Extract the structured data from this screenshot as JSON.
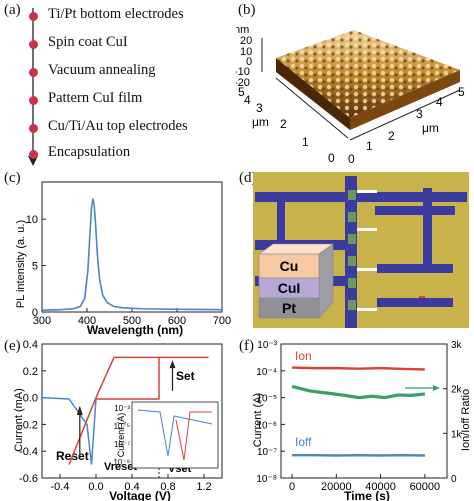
{
  "panel_a": {
    "label": "(a)",
    "steps": [
      "Ti/Pt bottom electrodes",
      "Spin coat CuI",
      "Vacuum annealing",
      "Pattern CuI film",
      "Cu/Ti/Au top electrodes",
      "Encapsulation"
    ]
  },
  "panel_b": {
    "label": "(b)",
    "z_unit": "nm",
    "z_ticks": [
      "20",
      "10",
      "0",
      "-10",
      "-20"
    ],
    "y_unit": "μm",
    "y_ticks": [
      "5",
      "4",
      "3",
      "2",
      "1",
      "0"
    ],
    "x_unit": "μm",
    "x_ticks": [
      "0",
      "1",
      "2",
      "3",
      "4",
      "5"
    ]
  },
  "panel_c": {
    "label": "(c)",
    "chart_data": {
      "type": "line",
      "xlabel": "Wavelength (nm)",
      "ylabel": "PL intensity (a. u.)",
      "xlim": [
        300,
        700
      ],
      "ylim": [
        0,
        14
      ],
      "xticks": [
        "300",
        "400",
        "500",
        "600",
        "700"
      ],
      "yticks": [
        "0",
        "5",
        "10"
      ],
      "x": [
        300,
        340,
        370,
        385,
        395,
        402,
        406,
        410,
        413,
        416,
        419,
        423,
        428,
        435,
        445,
        460,
        480,
        520,
        580,
        640,
        700
      ],
      "y": [
        0.2,
        0.25,
        0.35,
        0.6,
        1.5,
        4.5,
        8,
        11.2,
        12.2,
        11.5,
        9.5,
        6.2,
        3.5,
        1.8,
        1.0,
        0.6,
        0.45,
        0.35,
        0.3,
        0.28,
        0.25
      ],
      "color": "#4a86c8"
    }
  },
  "panel_d": {
    "label": "(d)",
    "layers": [
      "Cu",
      "CuI",
      "Pt"
    ],
    "colors": {
      "substrate": "#c9b24a",
      "electrode": "#3b3a9e",
      "pad": "#6a9a5a",
      "cu": "#f6c9a3",
      "cui": "#b7a9d6",
      "pt": "#8f9196"
    }
  },
  "panel_e": {
    "label": "(e)",
    "chart_data": {
      "type": "line",
      "xlabel": "Voltage (V)",
      "ylabel": "Current (mA)",
      "xlim": [
        -0.6,
        1.4
      ],
      "ylim": [
        -0.6,
        0.4
      ],
      "xticks": [
        "-0.4",
        "0.0",
        "0.4",
        "0.8",
        "1.2"
      ],
      "yticks": [
        "0.4",
        "0.2",
        "0.0",
        "-0.2",
        "-0.4",
        "-0.6"
      ],
      "series": [
        {
          "color": "#d9413b",
          "x": [
            0.0,
            0.7,
            0.7,
            1.25,
            1.25,
            0.2,
            0.0,
            -0.3
          ],
          "y": [
            -0.01,
            -0.01,
            0.3,
            0.3,
            0.3,
            0.3,
            0.0,
            -0.5
          ]
        },
        {
          "color": "#4a86c8",
          "x": [
            -0.6,
            -0.3,
            -0.1,
            -0.05,
            0.0
          ],
          "y": [
            0.0,
            -0.01,
            -0.2,
            -0.5,
            -0.01
          ]
        }
      ],
      "annotations": [
        "Set",
        "Reset",
        "Vreset",
        "Vset"
      ],
      "inset": {
        "ylabel": "Current (A)",
        "yticks": [
          "10⁻³",
          "10⁻⁵",
          "10⁻⁷",
          "10⁻⁹"
        ]
      }
    }
  },
  "panel_f": {
    "label": "(f)",
    "chart_data": {
      "type": "line",
      "xlabel": "Time (s)",
      "ylabel": "Current (A)",
      "ylabel_right": "Ion/Ioff Ratio",
      "xlim": [
        -5000,
        70000
      ],
      "ylim_log": [
        -8,
        -3
      ],
      "xticks": [
        "0",
        "20000",
        "40000",
        "60000"
      ],
      "yticks": [
        "10⁻³",
        "10⁻⁴",
        "10⁻⁵",
        "10⁻⁶",
        "10⁻⁷",
        "10⁻⁸"
      ],
      "yticks_right": [
        "3k",
        "2k",
        "1k",
        "0"
      ],
      "series": [
        {
          "name": "Ion",
          "color": "#d9413b",
          "x": [
            0,
            10000,
            20000,
            30000,
            40000,
            50000,
            60000
          ],
          "y_log": [
            -3.88,
            -3.9,
            -3.9,
            -3.92,
            -3.9,
            -3.93,
            -3.95
          ]
        },
        {
          "name": "Ioff",
          "color": "#4a86c8",
          "x": [
            0,
            10000,
            20000,
            30000,
            40000,
            50000,
            60000
          ],
          "y_log": [
            -7.15,
            -7.15,
            -7.16,
            -7.15,
            -7.16,
            -7.15,
            -7.16
          ]
        },
        {
          "name": "",
          "color": "#3aa066",
          "x": [
            0,
            8000,
            16000,
            24000,
            30000,
            36000,
            42000,
            48000,
            54000,
            60000
          ],
          "y_ratio": [
            2050,
            1950,
            1900,
            1850,
            1800,
            1830,
            1800,
            1860,
            1850,
            1880
          ]
        }
      ]
    }
  }
}
